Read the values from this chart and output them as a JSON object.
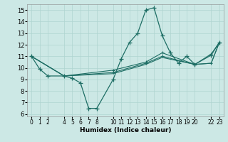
{
  "xlabel": "Humidex (Indice chaleur)",
  "bg_color": "#cce8e5",
  "grid_color": "#afd4d0",
  "line_color": "#1e6e65",
  "xlim": [
    -0.5,
    23.5
  ],
  "ylim": [
    5.8,
    15.5
  ],
  "xticks": [
    0,
    1,
    2,
    4,
    5,
    6,
    7,
    8,
    10,
    11,
    12,
    13,
    14,
    15,
    16,
    17,
    18,
    19,
    20,
    22,
    23
  ],
  "yticks": [
    6,
    7,
    8,
    9,
    10,
    11,
    12,
    13,
    14,
    15
  ],
  "line1_x": [
    0,
    1,
    2,
    4,
    5,
    6,
    7,
    8,
    10,
    11,
    12,
    13,
    14,
    15,
    16,
    17,
    18,
    19,
    20,
    22,
    23
  ],
  "line1_y": [
    11.0,
    9.9,
    9.3,
    9.3,
    9.1,
    8.7,
    6.5,
    6.5,
    9.0,
    10.8,
    12.2,
    13.0,
    15.0,
    15.2,
    12.8,
    11.3,
    10.4,
    11.0,
    10.3,
    11.1,
    12.2
  ],
  "line2_x": [
    0,
    4,
    10,
    14,
    16,
    20,
    22,
    23
  ],
  "line2_y": [
    11.0,
    9.3,
    9.8,
    10.5,
    11.3,
    10.3,
    11.2,
    12.2
  ],
  "line3_x": [
    0,
    4,
    10,
    14,
    16,
    20,
    22,
    23
  ],
  "line3_y": [
    11.0,
    9.3,
    9.6,
    10.4,
    11.0,
    10.3,
    10.4,
    12.2
  ],
  "line4_x": [
    0,
    4,
    10,
    14,
    16,
    20,
    22,
    23
  ],
  "line4_y": [
    11.0,
    9.3,
    9.5,
    10.3,
    10.9,
    10.3,
    10.4,
    12.2
  ]
}
